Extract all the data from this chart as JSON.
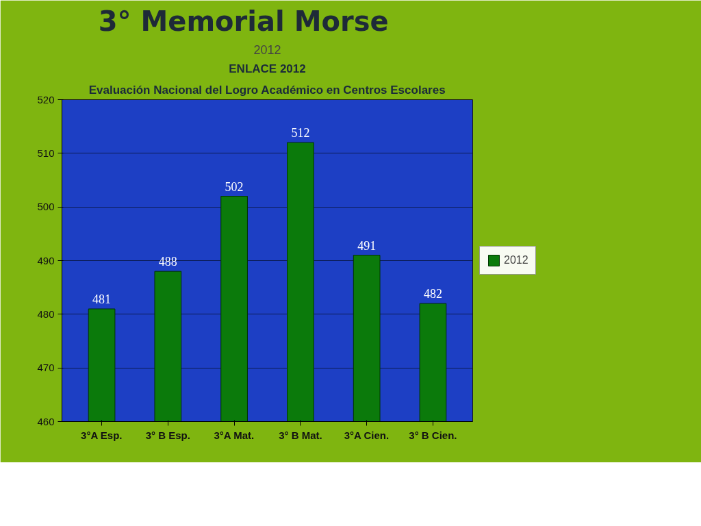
{
  "chart_data": {
    "type": "bar",
    "title": "3°      Memorial Morse",
    "subtitle": "2012",
    "annotations": [
      "Evaluación Nacional del Logro Académico en Centros Escolares",
      "ENLACE 2012"
    ],
    "categories": [
      "3°A Esp.",
      "3° B Esp.",
      "3°A Mat.",
      "3° B Mat.",
      "3°A Cien.",
      "3° B Cien."
    ],
    "series": [
      {
        "name": "2012",
        "color": "#0b7a0b",
        "values": [
          481,
          488,
          502,
          512,
          491,
          482
        ]
      }
    ],
    "ylim": [
      460,
      520
    ],
    "yticks": [
      460,
      470,
      480,
      490,
      500,
      510,
      520
    ],
    "grid": "y",
    "legend": "right",
    "data_labels": true
  }
}
